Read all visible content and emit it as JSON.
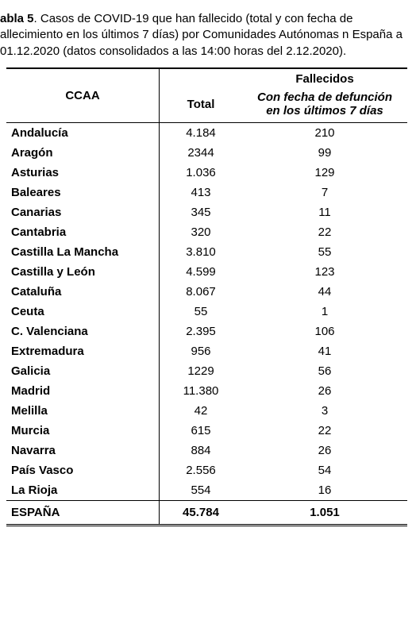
{
  "caption": {
    "label_prefix": "abla 5",
    "text": ". Casos de COVID-19 que han fallecido (total y con fecha de allecimiento en los últimos 7 días) por Comunidades Autónomas n España a 01.12.2020 (datos consolidados a las 14:00 horas del 2.12.2020)."
  },
  "table": {
    "type": "table",
    "background_color": "#ffffff",
    "text_color": "#000000",
    "border_color": "#000000",
    "font_family": "Arial",
    "body_fontsize": 15,
    "columns": {
      "ccaa": {
        "label": "CCAA",
        "align": "left",
        "weight": "bold",
        "width": 180
      },
      "fallecidos_group": {
        "label": "Fallecidos"
      },
      "total": {
        "label": "Total",
        "align": "center",
        "width": 92
      },
      "last7": {
        "label_line1": "Con fecha de defunción",
        "label_line2": "en los últimos 7 días",
        "align": "center",
        "italic": true
      }
    },
    "rows": [
      {
        "ccaa": "Andalucía",
        "total": "4.184",
        "last7": "210"
      },
      {
        "ccaa": "Aragón",
        "total": "2344",
        "last7": "99"
      },
      {
        "ccaa": "Asturias",
        "total": "1.036",
        "last7": "129"
      },
      {
        "ccaa": "Baleares",
        "total": "413",
        "last7": "7"
      },
      {
        "ccaa": "Canarias",
        "total": "345",
        "last7": "11"
      },
      {
        "ccaa": "Cantabria",
        "total": "320",
        "last7": "22"
      },
      {
        "ccaa": "Castilla La Mancha",
        "total": "3.810",
        "last7": "55"
      },
      {
        "ccaa": "Castilla y León",
        "total": "4.599",
        "last7": "123"
      },
      {
        "ccaa": "Cataluña",
        "total": "8.067",
        "last7": "44"
      },
      {
        "ccaa": "Ceuta",
        "total": "55",
        "last7": "1"
      },
      {
        "ccaa": "C. Valenciana",
        "total": "2.395",
        "last7": "106"
      },
      {
        "ccaa": "Extremadura",
        "total": "956",
        "last7": "41"
      },
      {
        "ccaa": "Galicia",
        "total": "1229",
        "last7": "56"
      },
      {
        "ccaa": "Madrid",
        "total": "11.380",
        "last7": "26"
      },
      {
        "ccaa": "Melilla",
        "total": "42",
        "last7": "3"
      },
      {
        "ccaa": "Murcia",
        "total": "615",
        "last7": "22"
      },
      {
        "ccaa": "Navarra",
        "total": "884",
        "last7": "26"
      },
      {
        "ccaa": "País Vasco",
        "total": "2.556",
        "last7": "54"
      },
      {
        "ccaa": "La Rioja",
        "total": "554",
        "last7": "16"
      }
    ],
    "total_row": {
      "ccaa": "ESPAÑA",
      "total": "45.784",
      "last7": "1.051"
    }
  }
}
